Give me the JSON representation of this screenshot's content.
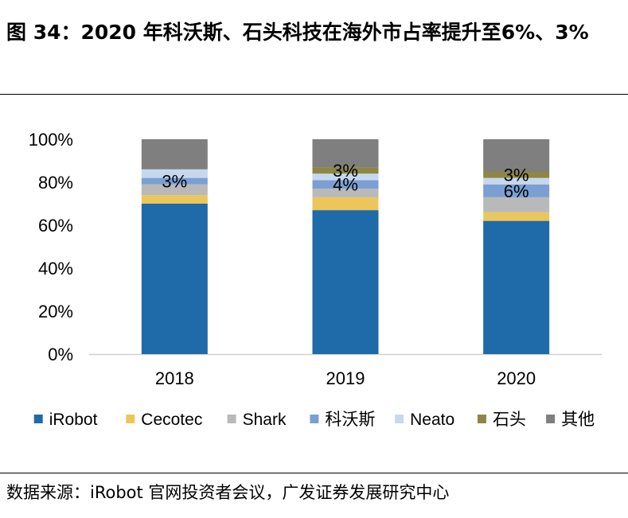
{
  "figure": {
    "title": "图 34：2020 年科沃斯、石头科技在海外市占率提升至6%、3%",
    "source": "数据来源：iRobot 官网投资者会议，广发证券发展研究中心"
  },
  "chart_data": {
    "type": "bar",
    "stacked": true,
    "categories": [
      "2018",
      "2019",
      "2020"
    ],
    "ylim": [
      0,
      100
    ],
    "yticks": [
      "0%",
      "20%",
      "40%",
      "60%",
      "80%",
      "100%"
    ],
    "legend_position": "bottom",
    "series": [
      {
        "name": "iRobot",
        "color": "#1f6aa8",
        "values": [
          70,
          67,
          62
        ]
      },
      {
        "name": "Cecotec",
        "color": "#ebc65b",
        "values": [
          4,
          6,
          4
        ]
      },
      {
        "name": "Shark",
        "color": "#b9b9b9",
        "values": [
          5,
          4,
          7
        ]
      },
      {
        "name": "科沃斯",
        "color": "#7b9fd3",
        "values": [
          3,
          4,
          6
        ]
      },
      {
        "name": "Neato",
        "color": "#c6d8ee",
        "values": [
          4,
          3,
          3
        ]
      },
      {
        "name": "石头",
        "color": "#8e8646",
        "values": [
          0,
          3,
          3
        ]
      },
      {
        "name": "其他",
        "color": "#7f7f7f",
        "values": [
          14,
          13,
          15
        ]
      }
    ],
    "data_labels": [
      {
        "category": "2018",
        "series": "科沃斯",
        "text": "3%"
      },
      {
        "category": "2019",
        "series": "科沃斯",
        "text": "4%"
      },
      {
        "category": "2019",
        "series": "石头",
        "text": "3%"
      },
      {
        "category": "2020",
        "series": "科沃斯",
        "text": "6%"
      },
      {
        "category": "2020",
        "series": "石头",
        "text": "3%"
      }
    ]
  }
}
